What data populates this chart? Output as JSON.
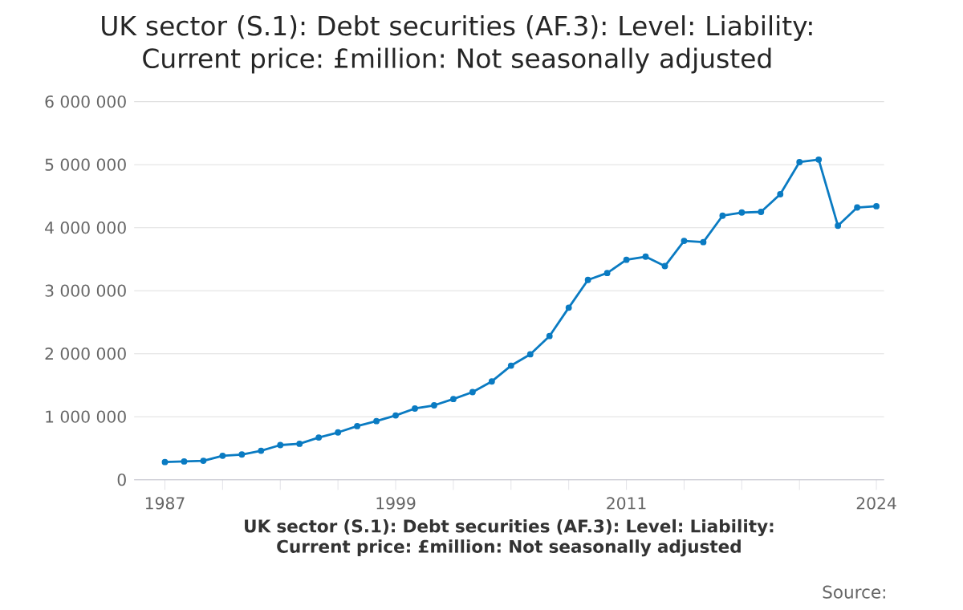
{
  "chart_data": {
    "type": "line",
    "title": "UK sector (S.1): Debt securities (AF.3): Level: Liability: Current price: £million: Not seasonally adjusted",
    "xlabel": "UK sector (S.1): Debt securities (AF.3): Level: Liability: Current price: £million: Not seasonally adjusted",
    "annotations": [
      "Source:"
    ],
    "x": [
      1987,
      1988,
      1989,
      1990,
      1991,
      1992,
      1993,
      1994,
      1995,
      1996,
      1997,
      1998,
      1999,
      2000,
      2001,
      2002,
      2003,
      2004,
      2005,
      2006,
      2007,
      2008,
      2009,
      2010,
      2011,
      2012,
      2013,
      2014,
      2015,
      2016,
      2017,
      2018,
      2019,
      2020,
      2021,
      2022,
      2023,
      2024
    ],
    "series": [
      {
        "color": "#0a7bc2",
        "values": [
          280000,
          290000,
          300000,
          380000,
          400000,
          460000,
          550000,
          570000,
          670000,
          750000,
          850000,
          930000,
          1020000,
          1130000,
          1180000,
          1280000,
          1390000,
          1560000,
          1810000,
          1990000,
          2280000,
          2730000,
          3170000,
          3280000,
          3490000,
          3540000,
          3390000,
          3790000,
          3770000,
          4190000,
          4240000,
          4250000,
          4530000,
          5040000,
          5080000,
          4030000,
          4320000,
          4340000
        ]
      }
    ],
    "xlim": [
      1985.4,
      2024.4
    ],
    "xticks": [
      1987,
      {
        "value": 1990,
        "label": null
      },
      {
        "value": 1993,
        "label": null
      },
      {
        "value": 1996,
        "label": null
      },
      1999,
      {
        "value": 2002,
        "label": null
      },
      {
        "value": 2005,
        "label": null
      },
      {
        "value": 2008,
        "label": null
      },
      2011,
      {
        "value": 2014,
        "label": null
      },
      {
        "value": 2017,
        "label": null
      },
      {
        "value": 2020,
        "label": null
      },
      2024
    ],
    "ylim": [
      0,
      6000000
    ],
    "yticks": [
      {
        "value": 0,
        "label": "0"
      },
      {
        "value": 1000000,
        "label": "1 000 000"
      },
      {
        "value": 2000000,
        "label": "2 000 000"
      },
      {
        "value": 3000000,
        "label": "3 000 000"
      },
      {
        "value": 4000000,
        "label": "4 000 000"
      },
      {
        "value": 5000000,
        "label": "5 000 000"
      },
      {
        "value": 6000000,
        "label": "6 000 000"
      }
    ],
    "grid": "y",
    "marker": "circle",
    "line_style": "solid"
  }
}
